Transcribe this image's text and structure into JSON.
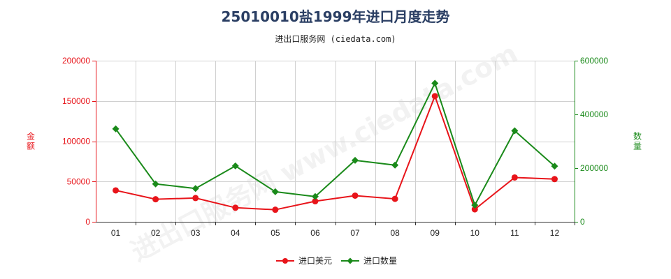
{
  "page": {
    "title": "25010010盐1999年进口月度走势",
    "subtitle": "进出口服务网 (ciedata.com)",
    "watermark": "进出口服务网 www.ciedata.com"
  },
  "chart_data": {
    "type": "line",
    "categories": [
      "01",
      "02",
      "03",
      "04",
      "05",
      "06",
      "07",
      "08",
      "09",
      "10",
      "11",
      "12"
    ],
    "y_left": {
      "label": "金额",
      "range": [
        0,
        200000
      ],
      "ticks": [
        "0",
        "50000",
        "100000",
        "150000",
        "200000"
      ],
      "color": "#e8141a"
    },
    "y_right": {
      "label": "数量",
      "range": [
        0,
        600000
      ],
      "ticks": [
        "0",
        "200000",
        "400000",
        "600000"
      ],
      "color": "#1a8a1a"
    },
    "series": [
      {
        "name": "进口美元",
        "axis": "left",
        "color": "#e8141a",
        "marker": "circle",
        "values": [
          39000,
          28000,
          29500,
          17500,
          15000,
          25500,
          32500,
          28500,
          156000,
          15500,
          55000,
          53000
        ]
      },
      {
        "name": "进口数量",
        "axis": "right",
        "color": "#1a8a1a",
        "marker": "diamond",
        "values": [
          346000,
          141000,
          124000,
          208000,
          112000,
          94000,
          229000,
          211000,
          516000,
          62000,
          339000,
          207000
        ]
      }
    ],
    "grid": true,
    "legend": "bottom-center"
  }
}
